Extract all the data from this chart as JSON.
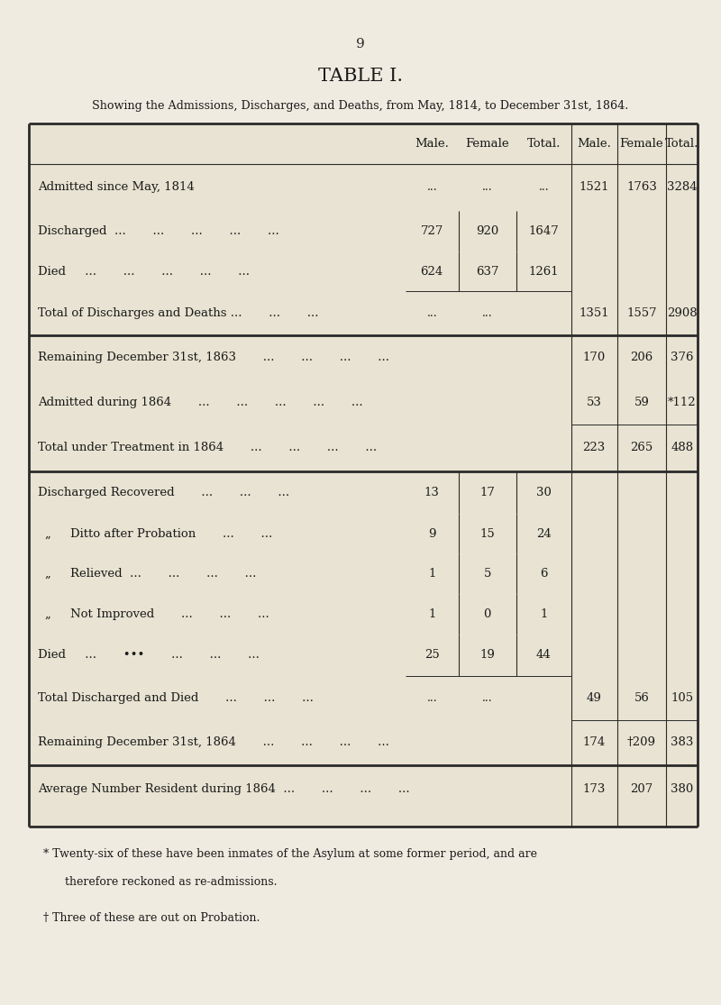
{
  "page_number": "9",
  "title": "TABLE I.",
  "subtitle": "Showing the Admissions, Discharges, and Deaths, from May, 1814, to December 31st, 1864.",
  "bg_color": "#f0ebe0",
  "table_bg": "#e8e3d2",
  "footnote1_line1": "* Twenty-six of these have been inmates of the Asylum at some former period, and are",
  "footnote1_line2": "      therefore reckoned as re-admissions.",
  "footnote2": "† Three of these are out on Probation."
}
